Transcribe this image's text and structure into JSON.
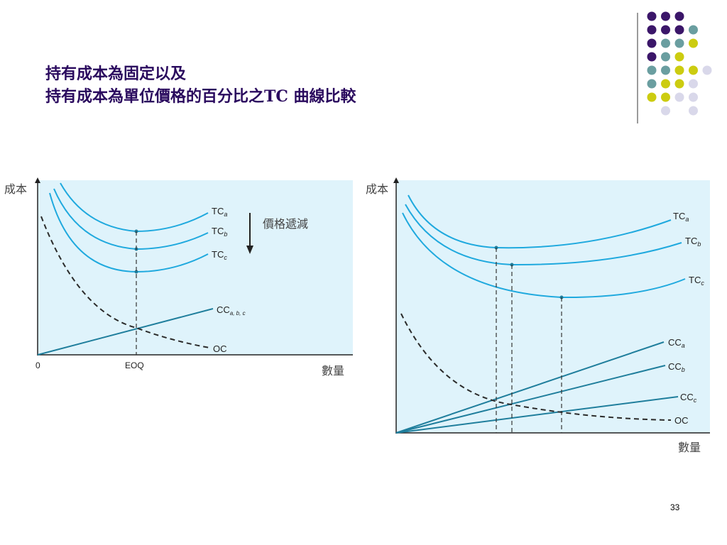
{
  "slide": {
    "title_line1": "持有成本為固定以及",
    "title_line2": "持有成本為單位價格的百分比之TC 曲線比較",
    "page_number": "33"
  },
  "colors": {
    "title": "#2a0a5e",
    "plot_bg": "#dff3fb",
    "tc_curve": "#1fa9de",
    "cc_line": "#1f7e9c",
    "oc_curve": "#2b2b2b",
    "dot_purple": "#3b1669",
    "dot_teal": "#6a9ea0",
    "dot_yellow": "#cccc10",
    "dot_lavender": "#d9d8ea"
  },
  "chart_data": [
    {
      "type": "line",
      "ylabel": "成本",
      "xlabel": "數量",
      "x_ticks": [
        "0",
        "EOQ"
      ],
      "annotation": "價格遞減",
      "series": [
        {
          "name": "TC_a"
        },
        {
          "name": "TC_b"
        },
        {
          "name": "TC_c"
        },
        {
          "name": "CC_a, b, c"
        },
        {
          "name": "OC"
        }
      ],
      "labels": {
        "tca_main": "TC",
        "tca_sub": "a",
        "tcb_main": "TC",
        "tcb_sub": "b",
        "tcc_main": "TC",
        "tcc_sub": "c",
        "cc_main": "CC",
        "cc_sub": "a, b, c",
        "oc": "OC"
      }
    },
    {
      "type": "line",
      "ylabel": "成本",
      "xlabel": "數量",
      "series": [
        {
          "name": "TC_a"
        },
        {
          "name": "TC_b"
        },
        {
          "name": "TC_c"
        },
        {
          "name": "CC_a"
        },
        {
          "name": "CC_b"
        },
        {
          "name": "CC_c"
        },
        {
          "name": "OC"
        }
      ],
      "labels": {
        "tca_main": "TC",
        "tca_sub": "a",
        "tcb_main": "TC",
        "tcb_sub": "b",
        "tcc_main": "TC",
        "tcc_sub": "c",
        "cca_main": "CC",
        "cca_sub": "a",
        "ccb_main": "CC",
        "ccb_sub": "b",
        "ccc_main": "CC",
        "ccc_sub": "c",
        "oc": "OC"
      }
    }
  ]
}
